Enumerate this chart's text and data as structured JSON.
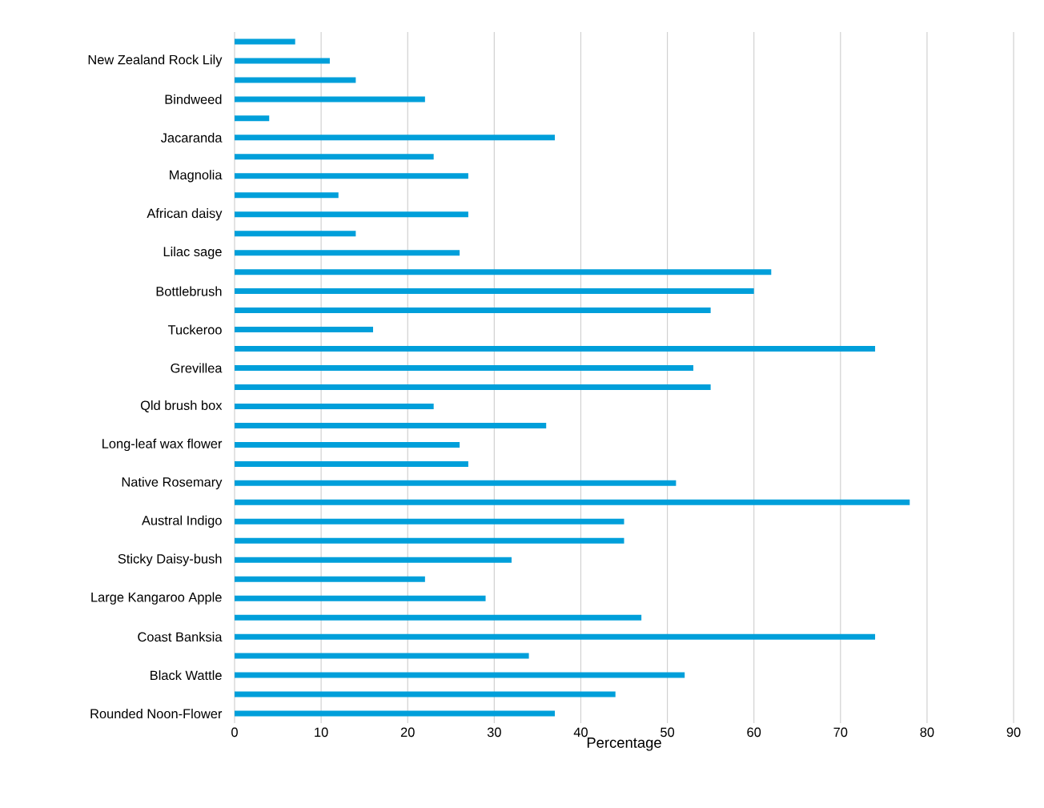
{
  "chart_data": {
    "type": "bar",
    "orientation": "horizontal",
    "xlabel": "Percentage",
    "categories": [
      null,
      "New Zealand Rock Lily",
      null,
      "Bindweed",
      null,
      "Jacaranda",
      null,
      "Magnolia",
      null,
      "African daisy",
      null,
      "Lilac sage",
      null,
      "Bottlebrush",
      null,
      "Tuckeroo",
      null,
      "Grevillea",
      null,
      "Qld brush box",
      null,
      "Long-leaf wax flower",
      null,
      "Native Rosemary",
      null,
      "Austral Indigo",
      null,
      "Sticky Daisy-bush",
      null,
      "Large Kangaroo Apple",
      null,
      "Coast Banksia",
      null,
      "Black Wattle",
      null,
      "Rounded Noon-Flower"
    ],
    "values": [
      7,
      11,
      14,
      22,
      4,
      37,
      23,
      27,
      12,
      27,
      14,
      26,
      62,
      60,
      55,
      16,
      74,
      53,
      55,
      23,
      36,
      26,
      27,
      51,
      78,
      45,
      45,
      32,
      22,
      29,
      47,
      74,
      34,
      52,
      44,
      37
    ],
    "color": "#009fda",
    "xlim": [
      0,
      90
    ],
    "xticks": [
      0,
      10,
      20,
      30,
      40,
      50,
      60,
      70,
      80,
      90
    ],
    "grid": "x"
  }
}
